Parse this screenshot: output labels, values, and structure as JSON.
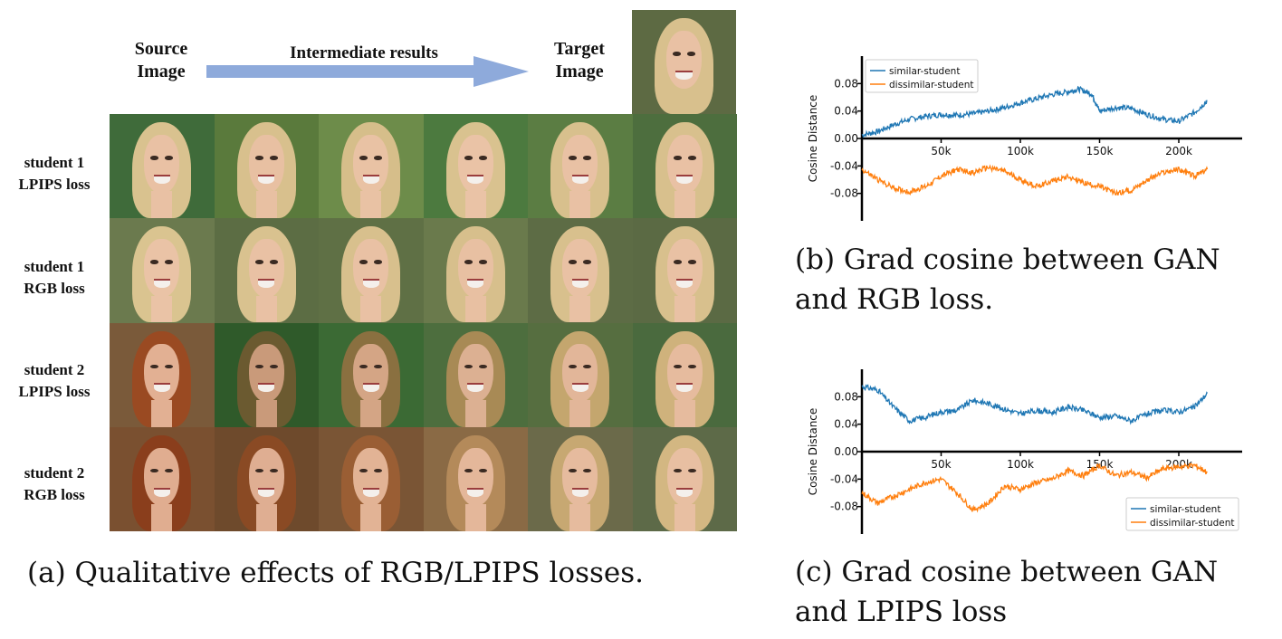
{
  "panel_a": {
    "header": {
      "source": [
        "Source",
        "Image"
      ],
      "intermediate": "Intermediate results",
      "target": [
        "Target",
        "Image"
      ]
    },
    "rows": [
      {
        "label": [
          "student 1",
          "LPIPS loss"
        ]
      },
      {
        "label": [
          "student 1",
          "RGB loss"
        ]
      },
      {
        "label": [
          "student 2",
          "LPIPS loss"
        ]
      },
      {
        "label": [
          "student 2",
          "RGB loss"
        ]
      }
    ],
    "caption": "(a) Qualitative effects of RGB/LPIPS losses."
  },
  "captions": {
    "b": [
      "(b) Grad cosine between GAN",
      "and RGB loss."
    ],
    "c": [
      "(c) Grad cosine between GAN",
      "and LPIPS loss"
    ]
  },
  "colors": {
    "similar": "#1f77b4",
    "dissimilar": "#ff7f0e",
    "arrow": "#8eaadb"
  },
  "chart_data": [
    {
      "type": "line",
      "id": "b",
      "ylabel": "Cosine Distance",
      "xticks": [
        "50k",
        "100k",
        "150k",
        "200k"
      ],
      "xtick_values": [
        50000,
        100000,
        150000,
        200000
      ],
      "yticks": [
        "0.08",
        "0.04",
        "0.00",
        "-0.04",
        "-0.08"
      ],
      "ytick_values": [
        0.08,
        0.04,
        0.0,
        -0.04,
        -0.08
      ],
      "xlim": [
        0,
        240000
      ],
      "ylim": [
        -0.12,
        0.12
      ],
      "legend_position": "top-left",
      "series": [
        {
          "name": "similar-student",
          "x": [
            0,
            10000,
            20000,
            30000,
            40000,
            50000,
            60000,
            70000,
            80000,
            90000,
            100000,
            110000,
            120000,
            130000,
            137000,
            145000,
            150000,
            160000,
            170000,
            180000,
            190000,
            200000,
            210000,
            218000
          ],
          "y": [
            0.005,
            0.01,
            0.02,
            0.028,
            0.032,
            0.035,
            0.034,
            0.036,
            0.04,
            0.045,
            0.052,
            0.058,
            0.064,
            0.068,
            0.072,
            0.065,
            0.04,
            0.045,
            0.044,
            0.035,
            0.028,
            0.025,
            0.038,
            0.055
          ]
        },
        {
          "name": "dissimilar-student",
          "x": [
            0,
            10000,
            20000,
            30000,
            40000,
            50000,
            60000,
            70000,
            80000,
            90000,
            100000,
            110000,
            120000,
            130000,
            140000,
            150000,
            160000,
            170000,
            180000,
            190000,
            200000,
            210000,
            218000
          ],
          "y": [
            -0.045,
            -0.06,
            -0.072,
            -0.078,
            -0.07,
            -0.055,
            -0.045,
            -0.05,
            -0.042,
            -0.048,
            -0.06,
            -0.07,
            -0.062,
            -0.055,
            -0.065,
            -0.07,
            -0.08,
            -0.075,
            -0.06,
            -0.05,
            -0.045,
            -0.055,
            -0.045
          ]
        }
      ]
    },
    {
      "type": "line",
      "id": "c",
      "ylabel": "Cosine Distance",
      "xticks": [
        "50k",
        "100k",
        "150k",
        "200k"
      ],
      "xtick_values": [
        50000,
        100000,
        150000,
        200000
      ],
      "yticks": [
        "0.08",
        "0.04",
        "0.00",
        "-0.04",
        "-0.08"
      ],
      "ytick_values": [
        0.08,
        0.04,
        0.0,
        -0.04,
        -0.08
      ],
      "xlim": [
        0,
        240000
      ],
      "ylim": [
        -0.12,
        0.12
      ],
      "legend_position": "bottom-right",
      "series": [
        {
          "name": "similar-student",
          "x": [
            0,
            10000,
            20000,
            30000,
            40000,
            50000,
            60000,
            70000,
            80000,
            90000,
            100000,
            110000,
            120000,
            130000,
            140000,
            150000,
            160000,
            170000,
            180000,
            190000,
            200000,
            210000,
            218000
          ],
          "y": [
            0.095,
            0.09,
            0.065,
            0.045,
            0.05,
            0.058,
            0.06,
            0.075,
            0.07,
            0.062,
            0.055,
            0.06,
            0.057,
            0.065,
            0.06,
            0.05,
            0.052,
            0.045,
            0.055,
            0.06,
            0.058,
            0.065,
            0.085
          ]
        },
        {
          "name": "dissimilar-student",
          "x": [
            0,
            10000,
            20000,
            30000,
            40000,
            50000,
            60000,
            70000,
            80000,
            90000,
            100000,
            110000,
            120000,
            130000,
            140000,
            150000,
            160000,
            170000,
            180000,
            190000,
            200000,
            210000,
            218000
          ],
          "y": [
            -0.06,
            -0.075,
            -0.065,
            -0.055,
            -0.045,
            -0.04,
            -0.06,
            -0.085,
            -0.075,
            -0.05,
            -0.055,
            -0.045,
            -0.04,
            -0.028,
            -0.035,
            -0.02,
            -0.035,
            -0.03,
            -0.038,
            -0.025,
            -0.022,
            -0.02,
            -0.03
          ]
        }
      ]
    }
  ]
}
